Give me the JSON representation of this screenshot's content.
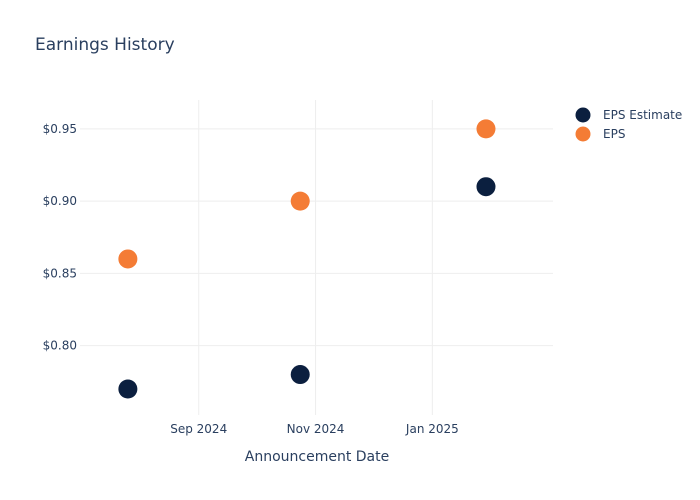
{
  "chart_data": {
    "type": "scatter",
    "title": "Earnings History",
    "xlabel": "Announcement Date",
    "ylabel": "",
    "x_tick_labels": [
      {
        "label": "Sep 2024",
        "date": "2024-09-01"
      },
      {
        "label": "Nov 2024",
        "date": "2024-11-01"
      },
      {
        "label": "Jan 2025",
        "date": "2025-01-01"
      }
    ],
    "y_tick_labels": [
      {
        "label": "$0.80",
        "value": 0.8
      },
      {
        "label": "$0.85",
        "value": 0.85
      },
      {
        "label": "$0.90",
        "value": 0.9
      },
      {
        "label": "$0.95",
        "value": 0.95
      }
    ],
    "xlim": [
      "2024-07-01",
      "2025-03-05"
    ],
    "ylim": [
      0.752,
      0.97
    ],
    "grid": true,
    "legend_position": "top-right",
    "series": [
      {
        "name": "EPS Estimate",
        "color": "#0b1f3f",
        "points": [
          {
            "date": "2024-07-26",
            "value": 0.77
          },
          {
            "date": "2024-10-24",
            "value": 0.78
          },
          {
            "date": "2025-01-29",
            "value": 0.91
          }
        ]
      },
      {
        "name": "EPS",
        "color": "#f47c35",
        "points": [
          {
            "date": "2024-07-26",
            "value": 0.86
          },
          {
            "date": "2024-10-24",
            "value": 0.9
          },
          {
            "date": "2025-01-29",
            "value": 0.95
          }
        ]
      }
    ]
  }
}
